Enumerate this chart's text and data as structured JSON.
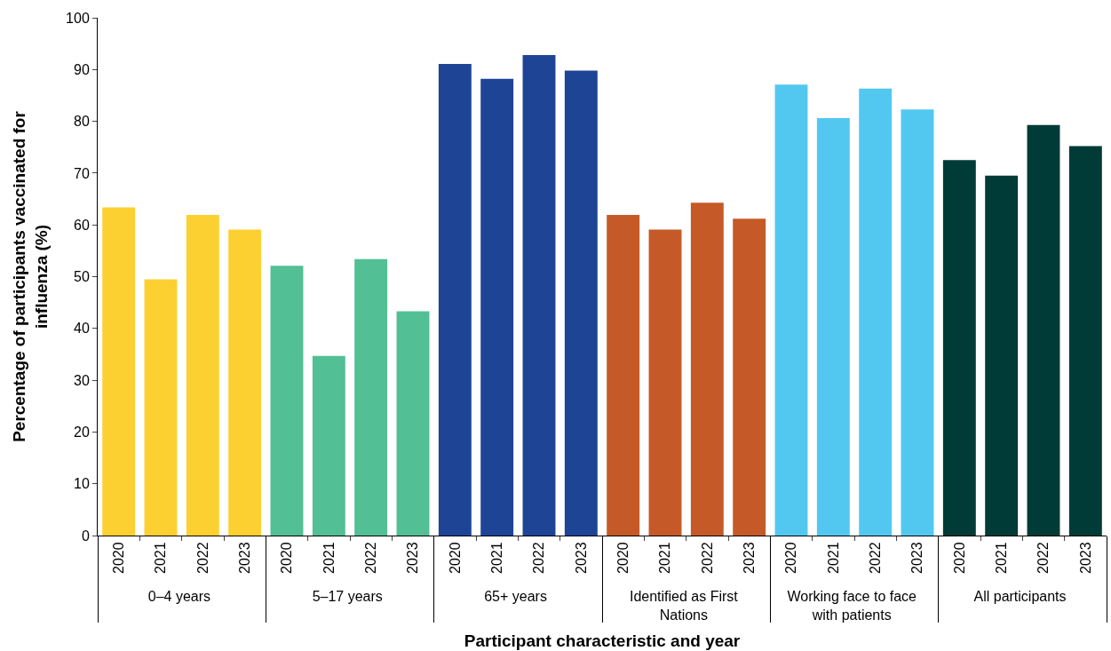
{
  "chart_data": {
    "type": "bar",
    "xlabel": "Participant characteristic and year",
    "ylabel": "Percentage of participants vaccinated for influenza (%)",
    "categories": [
      "2020",
      "2021",
      "2022",
      "2023",
      "2020",
      "2021",
      "2022",
      "2023",
      "2020",
      "2021",
      "2022",
      "2023",
      "2020",
      "2021",
      "2022",
      "2023",
      "2020",
      "2021",
      "2022",
      "2023",
      "2020",
      "2021",
      "2022",
      "2023"
    ],
    "values": [
      63.4,
      49.5,
      61.9,
      59.1,
      52.1,
      34.7,
      53.4,
      43.3,
      91.1,
      88.2,
      92.8,
      89.8,
      61.9,
      59.1,
      64.3,
      61.2,
      87.1,
      80.6,
      86.3,
      82.3,
      72.5,
      69.5,
      79.3,
      75.2
    ],
    "colors": [
      "#fdd032",
      "#fdd032",
      "#fdd032",
      "#fdd032",
      "#52bf95",
      "#52bf95",
      "#52bf95",
      "#52bf95",
      "#1e4496",
      "#1e4496",
      "#1e4496",
      "#1e4496",
      "#c55a28",
      "#c55a28",
      "#c55a28",
      "#c55a28",
      "#52c8f0",
      "#52c8f0",
      "#52c8f0",
      "#52c8f0",
      "#003b37",
      "#003b37",
      "#003b37",
      "#003b37"
    ],
    "annotations": [
      "0–4 years",
      "5–17 years",
      "65+ years",
      "Identified as First Nations",
      "Working face to face with patients",
      "All participants"
    ],
    "ylim": [
      0,
      100
    ],
    "yticks": [
      0,
      10,
      20,
      30,
      40,
      50,
      60,
      70,
      80,
      90,
      100
    ],
    "grid": false,
    "legend": false
  }
}
